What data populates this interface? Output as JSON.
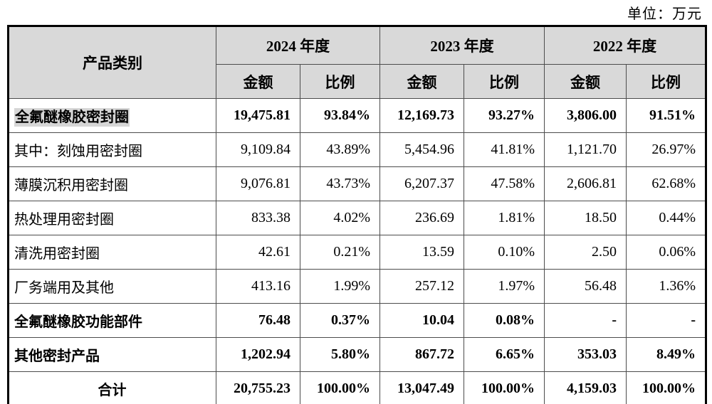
{
  "unit_label": "单位：万元",
  "colors": {
    "header_background": "#d9d9d9",
    "row_label_highlight": "#d6d6d6",
    "outer_border": "#000000",
    "inner_gridline": "#4c4c4c"
  },
  "table": {
    "header": {
      "product_category": "产品类别",
      "year_groups": [
        {
          "label": "2024 年度"
        },
        {
          "label": "2023 年度"
        },
        {
          "label": "2022 年度"
        }
      ],
      "sub_headers": {
        "amount": "金额",
        "ratio": "比例"
      }
    },
    "rows": [
      {
        "label": "全氟醚橡胶密封圈",
        "bold": true,
        "highlight": true,
        "align": "left",
        "values": [
          "19,475.81",
          "93.84%",
          "12,169.73",
          "93.27%",
          "3,806.00",
          "91.51%"
        ]
      },
      {
        "label": "其中：刻蚀用密封圈",
        "bold": false,
        "highlight": false,
        "align": "left",
        "values": [
          "9,109.84",
          "43.89%",
          "5,454.96",
          "41.81%",
          "1,121.70",
          "26.97%"
        ]
      },
      {
        "label": "薄膜沉积用密封圈",
        "bold": false,
        "highlight": false,
        "align": "left",
        "values": [
          "9,076.81",
          "43.73%",
          "6,207.37",
          "47.58%",
          "2,606.81",
          "62.68%"
        ]
      },
      {
        "label": "热处理用密封圈",
        "bold": false,
        "highlight": false,
        "align": "left",
        "values": [
          "833.38",
          "4.02%",
          "236.69",
          "1.81%",
          "18.50",
          "0.44%"
        ]
      },
      {
        "label": "清洗用密封圈",
        "bold": false,
        "highlight": false,
        "align": "left",
        "values": [
          "42.61",
          "0.21%",
          "13.59",
          "0.10%",
          "2.50",
          "0.06%"
        ]
      },
      {
        "label": "厂务端用及其他",
        "bold": false,
        "highlight": false,
        "align": "left",
        "values": [
          "413.16",
          "1.99%",
          "257.12",
          "1.97%",
          "56.48",
          "1.36%"
        ]
      },
      {
        "label": "全氟醚橡胶功能部件",
        "bold": true,
        "highlight": false,
        "align": "left",
        "values": [
          "76.48",
          "0.37%",
          "10.04",
          "0.08%",
          "-",
          "-"
        ]
      },
      {
        "label": "其他密封产品",
        "bold": true,
        "highlight": false,
        "align": "left",
        "values": [
          "1,202.94",
          "5.80%",
          "867.72",
          "6.65%",
          "353.03",
          "8.49%"
        ]
      },
      {
        "label": "合计",
        "bold": true,
        "highlight": false,
        "align": "center",
        "values": [
          "20,755.23",
          "100.00%",
          "13,047.49",
          "100.00%",
          "4,159.03",
          "100.00%"
        ]
      }
    ]
  }
}
